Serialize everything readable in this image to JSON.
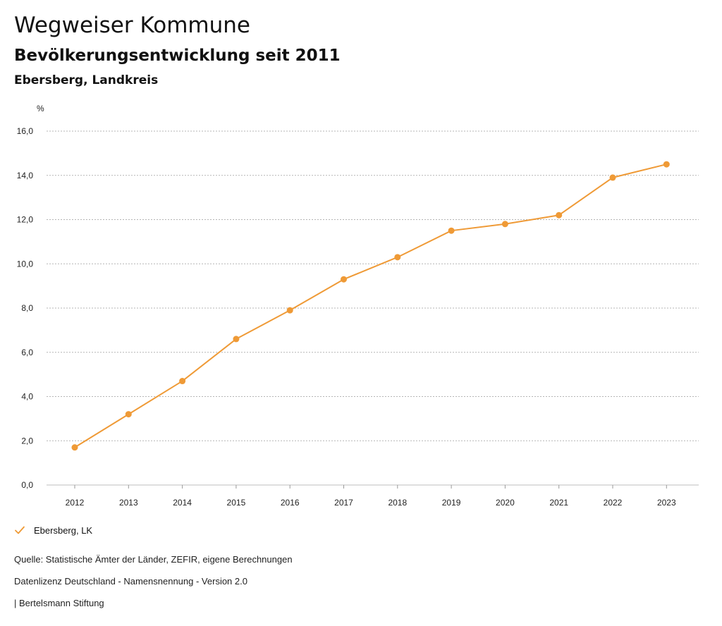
{
  "header": {
    "title": "Wegweiser Kommune",
    "subtitle": "Bevölkerungsentwicklung seit 2011",
    "region": "Ebersberg, Landkreis"
  },
  "legend": {
    "label": "Ebersberg, LK",
    "color": "#ef9a36"
  },
  "footer": {
    "source": "Quelle: Statistische Ämter der Länder, ZEFIR, eigene Berechnungen",
    "license": "Datenlizenz Deutschland - Namensnennung - Version 2.0",
    "publisher": "| Bertelsmann Stiftung"
  },
  "chart_data": {
    "type": "line",
    "title": "Bevölkerungsentwicklung seit 2011",
    "xlabel": "",
    "ylabel": "%",
    "x": [
      "2012",
      "2013",
      "2014",
      "2015",
      "2016",
      "2017",
      "2018",
      "2019",
      "2020",
      "2021",
      "2022",
      "2023"
    ],
    "series": [
      {
        "name": "Ebersberg, LK",
        "color": "#ef9a36",
        "values": [
          1.7,
          3.2,
          4.7,
          6.6,
          7.9,
          9.3,
          10.3,
          11.5,
          11.8,
          12.2,
          13.9,
          14.5
        ]
      }
    ],
    "ylim": [
      0,
      16
    ],
    "yticks": [
      "0,0",
      "2,0",
      "4,0",
      "6,0",
      "8,0",
      "10,0",
      "12,0",
      "14,0",
      "16,0"
    ],
    "grid": true,
    "legend_position": "bottom-left"
  }
}
